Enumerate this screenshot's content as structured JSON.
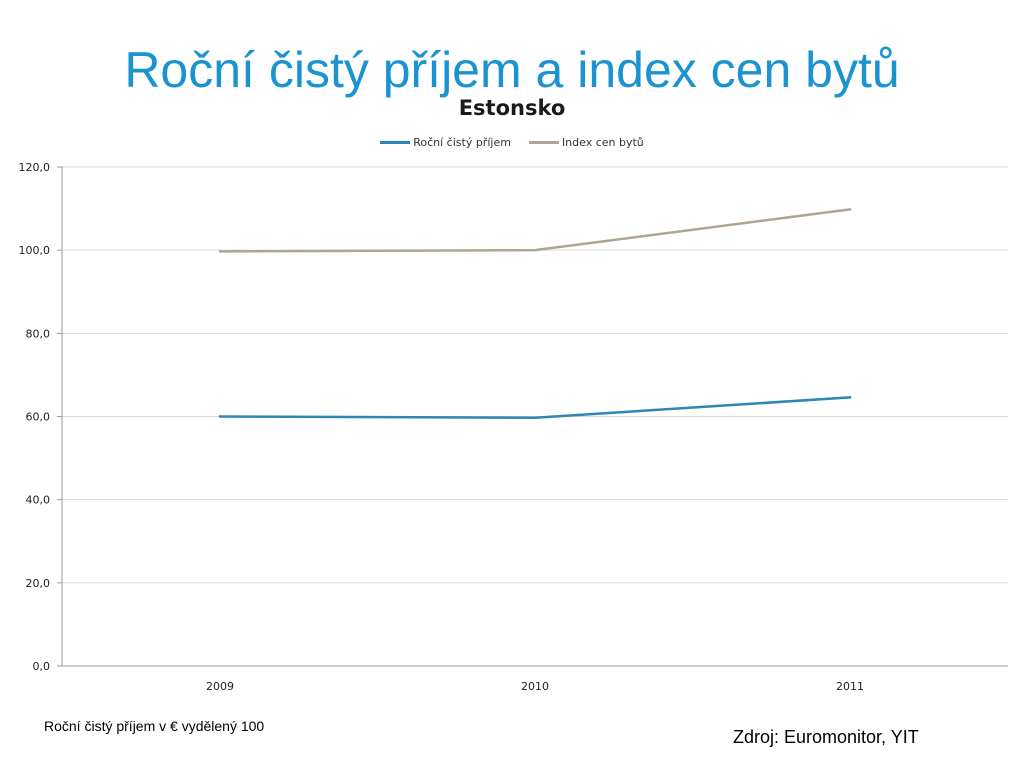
{
  "slide": {
    "title": "Roční čistý příjem a index cen bytů",
    "title_color": "#1a93d0",
    "footnote": "Roční čistý příjem v € vydělený 100",
    "source": "Zdroj: Euromonitor, YIT"
  },
  "chart_data": {
    "type": "line",
    "title": "Estonsko",
    "categories": [
      "2009",
      "2010",
      "2011"
    ],
    "series": [
      {
        "name": "Roční čistý příjem",
        "values": [
          60.0,
          59.7,
          64.6
        ],
        "color": "#2e86b5"
      },
      {
        "name": "Index cen bytů",
        "values": [
          99.7,
          100.0,
          109.8
        ],
        "color": "#aea593"
      }
    ],
    "ylim": [
      0,
      120
    ],
    "yticks": [
      "0,0",
      "20,0",
      "40,0",
      "60,0",
      "80,0",
      "100,0",
      "120,0"
    ],
    "ytick_values": [
      0,
      20,
      40,
      60,
      80,
      100,
      120
    ],
    "grid": true,
    "legend": "top"
  }
}
